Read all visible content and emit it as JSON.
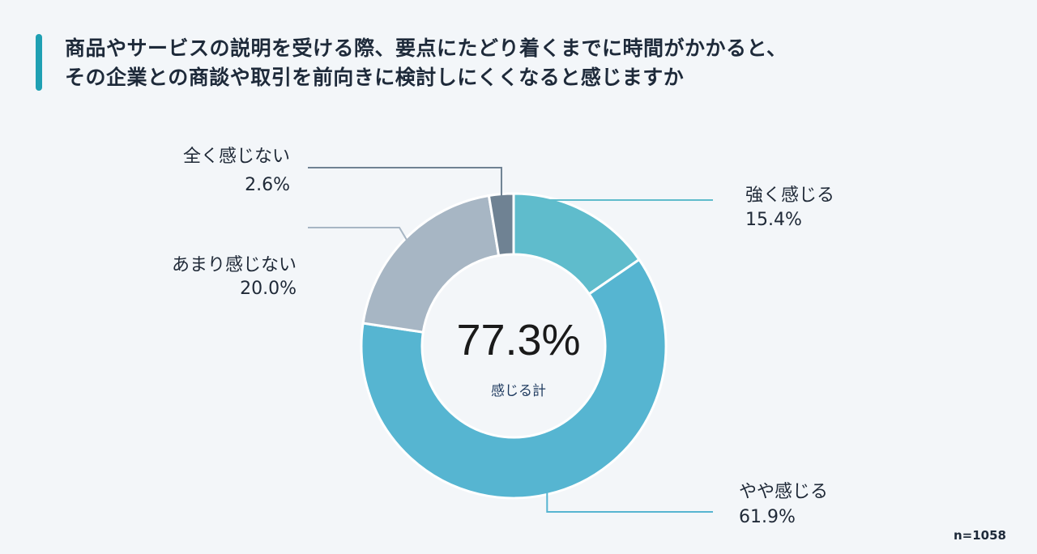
{
  "title": {
    "line1": "商品やサービスの説明を受ける際、要点にたどり着くまでに時間がかかると、",
    "line2": "その企業との商談や取引を前向きに検討しにくくなると感じますか"
  },
  "center": {
    "value": "77.3%",
    "label": "感じる計"
  },
  "note": "n=1058",
  "chart_data": {
    "type": "pie",
    "variant": "donut",
    "title": "",
    "slices": [
      {
        "label": "強く感じる",
        "value": 15.4,
        "value_text": "15.4%",
        "color": "#5fbccc"
      },
      {
        "label": "やや感じる",
        "value": 61.9,
        "value_text": "61.9%",
        "color": "#56b5d1"
      },
      {
        "label": "あまり感じない",
        "value": 20.0,
        "value_text": "20.0%",
        "color": "#a7b6c4"
      },
      {
        "label": "全く感じない",
        "value": 2.6,
        "value_text": "2.6%",
        "color": "#6f8293"
      }
    ],
    "start_angle": "12 o'clock",
    "direction": "clockwise",
    "legend": "none",
    "data_labels": "outside with leader lines"
  }
}
